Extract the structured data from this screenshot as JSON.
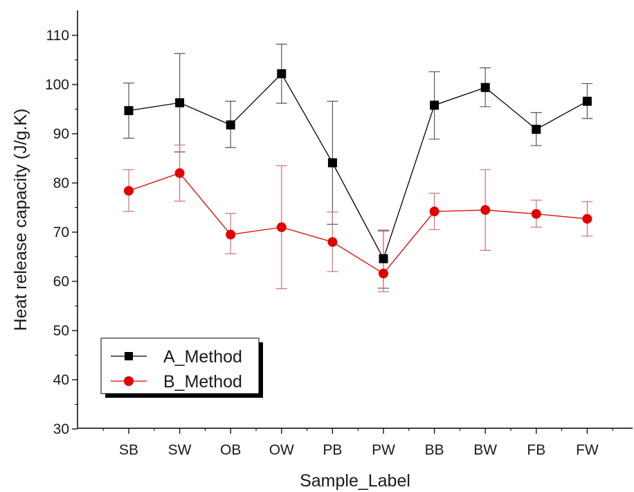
{
  "chart_data": {
    "type": "line",
    "title": "",
    "xlabel": "Sample_Label",
    "ylabel": "Heat release capacity (J/g.K)",
    "categories": [
      "SB",
      "SW",
      "OB",
      "OW",
      "PB",
      "PW",
      "BB",
      "BW",
      "FB",
      "FW"
    ],
    "ylim": [
      30,
      110
    ],
    "yticks": [
      30,
      40,
      50,
      60,
      70,
      80,
      90,
      100,
      110
    ],
    "grid": false,
    "legend_position": "bottom-left",
    "series": [
      {
        "name": "A_Method",
        "color": "#000000",
        "marker": "square",
        "values": [
          94.7,
          96.3,
          91.8,
          102.2,
          84.1,
          64.6,
          95.8,
          99.4,
          90.9,
          96.6
        ],
        "error_low": [
          89.1,
          86.3,
          87.2,
          96.2,
          71.6,
          58.6,
          88.9,
          95.5,
          87.6,
          93.1
        ],
        "error_high": [
          100.3,
          106.3,
          96.6,
          108.2,
          96.6,
          70.4,
          102.6,
          103.4,
          94.3,
          100.2
        ]
      },
      {
        "name": "B_Method",
        "color": "#e00000",
        "marker": "circle",
        "values": [
          78.4,
          82.0,
          69.5,
          71.0,
          68.0,
          61.6,
          74.2,
          74.5,
          73.7,
          72.7
        ],
        "error_low": [
          74.2,
          76.3,
          65.6,
          58.5,
          62.0,
          57.9,
          70.5,
          66.3,
          71.0,
          69.2
        ],
        "error_high": [
          82.7,
          87.7,
          73.8,
          83.5,
          74.1,
          70.2,
          77.9,
          82.7,
          76.5,
          76.2
        ]
      }
    ]
  }
}
